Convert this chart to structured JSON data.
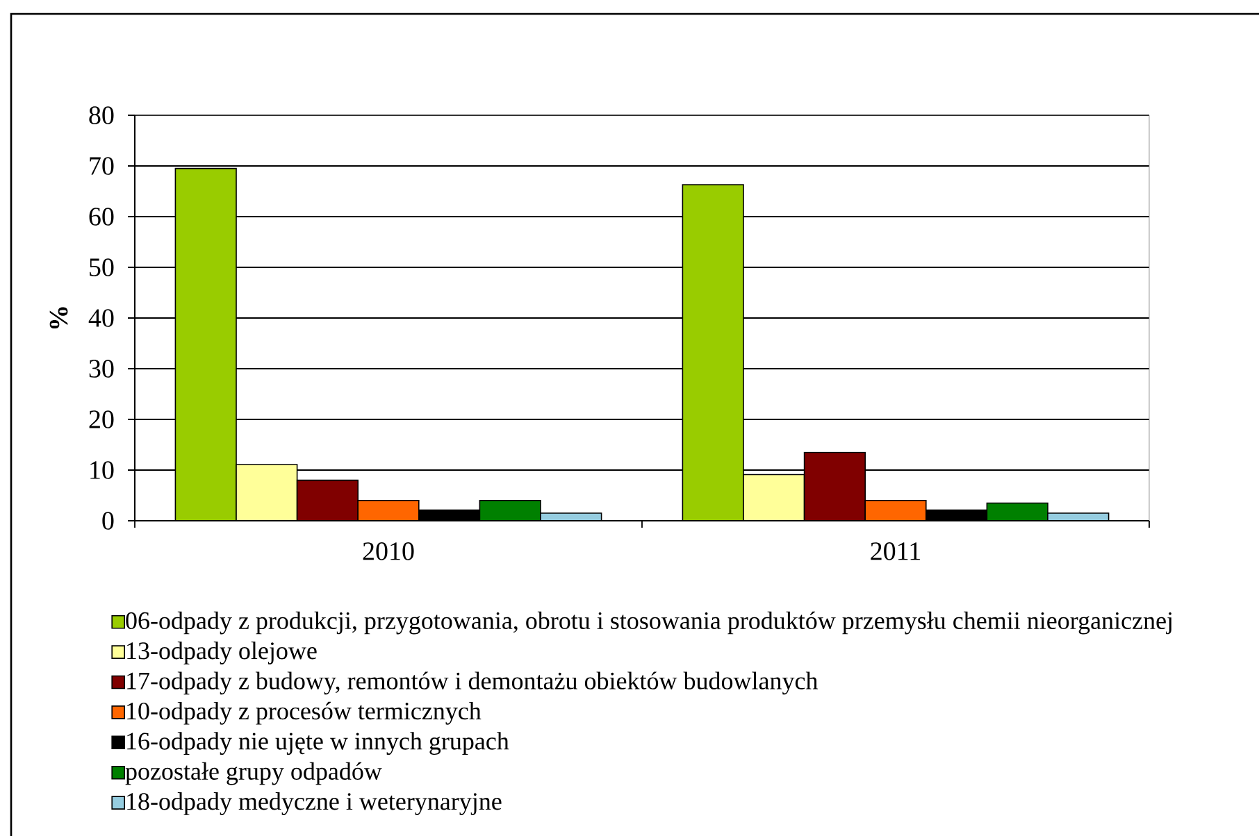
{
  "chart_data": {
    "type": "bar",
    "categories": [
      "2010",
      "2011"
    ],
    "ylabel": "%",
    "ylim": [
      0,
      80
    ],
    "yticks": [
      0,
      10,
      20,
      30,
      40,
      50,
      60,
      70,
      80
    ],
    "grid": "y",
    "legend": "bottom",
    "series": [
      {
        "name": "06-odpady z produkcji, przygotowania, obrotu i stosowania produktów przemysłu chemii nieorganicznej",
        "color": "#99cc00",
        "values": [
          69.5,
          66.3
        ]
      },
      {
        "name": "13-odpady olejowe",
        "color": "#ffff99",
        "values": [
          11.1,
          9.1
        ]
      },
      {
        "name": "17-odpady z budowy, remontów i demontażu obiektów budowlanych",
        "color": "#800000",
        "values": [
          8.0,
          13.5
        ]
      },
      {
        "name": "10-odpady z procesów termicznych",
        "color": "#ff6600",
        "values": [
          4.0,
          4.0
        ]
      },
      {
        "name": "16-odpady nie ujęte w innych grupach",
        "color": "#000000",
        "values": [
          2.1,
          2.1
        ]
      },
      {
        "name": "pozostałe grupy odpadów",
        "color": "#008000",
        "values": [
          4.0,
          3.5
        ]
      },
      {
        "name": "18-odpady medyczne i weterynaryjne",
        "color": "#96cde0",
        "values": [
          1.5,
          1.5
        ]
      }
    ]
  }
}
